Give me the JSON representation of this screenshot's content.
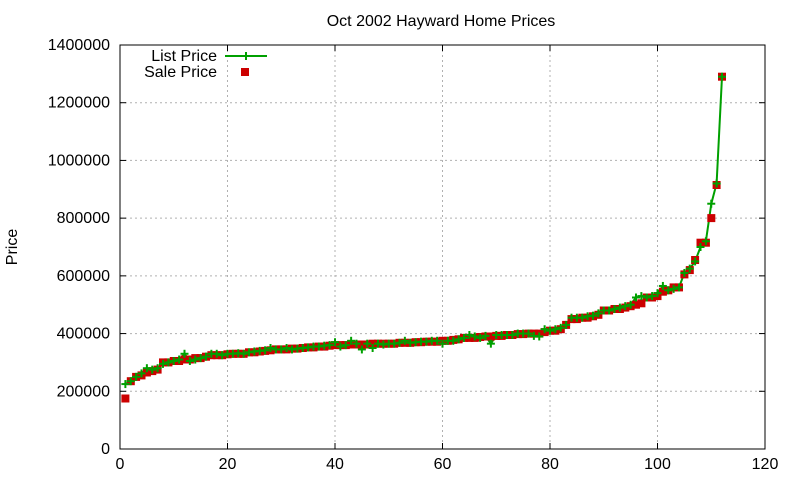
{
  "chart_data": {
    "type": "line",
    "title": "Oct 2002 Hayward Home Prices",
    "xlabel": "",
    "ylabel": "Price",
    "xlim": [
      0,
      120
    ],
    "ylim": [
      0,
      1400000
    ],
    "xticks": [
      0,
      20,
      40,
      60,
      80,
      100,
      120
    ],
    "yticks": [
      0,
      200000,
      400000,
      600000,
      800000,
      1000000,
      1200000,
      1400000
    ],
    "grid": true,
    "legend": "top-left",
    "series": [
      {
        "name": "List Price",
        "style": "linespoints",
        "marker": "plus",
        "color": "#00a000",
        "x": [
          1,
          2,
          3,
          4,
          5,
          6,
          7,
          8,
          9,
          10,
          11,
          12,
          13,
          14,
          15,
          16,
          17,
          18,
          19,
          20,
          21,
          22,
          23,
          24,
          25,
          26,
          27,
          28,
          29,
          30,
          31,
          32,
          33,
          34,
          35,
          36,
          37,
          38,
          39,
          40,
          41,
          42,
          43,
          44,
          45,
          46,
          47,
          48,
          49,
          50,
          51,
          52,
          53,
          54,
          55,
          56,
          57,
          58,
          59,
          60,
          61,
          62,
          63,
          64,
          65,
          66,
          67,
          68,
          69,
          70,
          71,
          72,
          73,
          74,
          75,
          76,
          77,
          78,
          79,
          80,
          81,
          82,
          83,
          84,
          85,
          86,
          87,
          88,
          89,
          90,
          91,
          92,
          93,
          94,
          95,
          96,
          97,
          98,
          99,
          100,
          101,
          102,
          103,
          104,
          105,
          106,
          107,
          108,
          109,
          110,
          111,
          112
        ],
        "y": [
          225000,
          235000,
          250000,
          262000,
          280000,
          275000,
          280000,
          295000,
          300000,
          305000,
          310000,
          330000,
          305000,
          310000,
          315000,
          320000,
          330000,
          330000,
          325000,
          330000,
          330000,
          332000,
          330000,
          335000,
          338000,
          340000,
          342000,
          350000,
          345000,
          345000,
          350000,
          345000,
          348000,
          350000,
          352000,
          355000,
          355000,
          358000,
          360000,
          370000,
          355000,
          360000,
          375000,
          365000,
          345000,
          365000,
          350000,
          365000,
          362000,
          365000,
          365000,
          368000,
          375000,
          368000,
          370000,
          372000,
          372000,
          375000,
          375000,
          365000,
          375000,
          375000,
          380000,
          385000,
          395000,
          390000,
          385000,
          392000,
          365000,
          395000,
          395000,
          395000,
          395000,
          400000,
          400000,
          400000,
          392000,
          390000,
          415000,
          410000,
          415000,
          420000,
          430000,
          455000,
          455000,
          455000,
          460000,
          462000,
          470000,
          480000,
          480000,
          485000,
          490000,
          495000,
          500000,
          525000,
          530000,
          525000,
          530000,
          540000,
          565000,
          550000,
          555000,
          560000,
          610000,
          625000,
          650000,
          700000,
          720000,
          850000,
          920000,
          1290000
        ]
      },
      {
        "name": "Sale Price",
        "style": "points",
        "marker": "square",
        "color": "#cc0000",
        "x": [
          1,
          2,
          3,
          4,
          5,
          6,
          7,
          8,
          9,
          10,
          11,
          12,
          13,
          14,
          15,
          16,
          17,
          18,
          19,
          20,
          21,
          22,
          23,
          24,
          25,
          26,
          27,
          28,
          29,
          30,
          31,
          32,
          33,
          34,
          35,
          36,
          37,
          38,
          39,
          40,
          41,
          42,
          43,
          44,
          45,
          46,
          47,
          48,
          49,
          50,
          51,
          52,
          53,
          54,
          55,
          56,
          57,
          58,
          59,
          60,
          61,
          62,
          63,
          64,
          65,
          66,
          67,
          68,
          69,
          70,
          71,
          72,
          73,
          74,
          75,
          76,
          77,
          78,
          79,
          80,
          81,
          82,
          83,
          84,
          85,
          86,
          87,
          88,
          89,
          90,
          91,
          92,
          93,
          94,
          95,
          96,
          97,
          98,
          99,
          100,
          101,
          102,
          103,
          104,
          105,
          106,
          107,
          108,
          109,
          110,
          111,
          112
        ],
        "y": [
          175000,
          235000,
          250000,
          255000,
          265000,
          270000,
          275000,
          300000,
          300000,
          305000,
          305000,
          310000,
          310000,
          315000,
          315000,
          320000,
          325000,
          325000,
          325000,
          328000,
          330000,
          330000,
          330000,
          335000,
          335000,
          338000,
          340000,
          342000,
          345000,
          345000,
          345000,
          348000,
          348000,
          350000,
          352000,
          352000,
          355000,
          355000,
          358000,
          360000,
          360000,
          360000,
          362000,
          362000,
          362000,
          362000,
          365000,
          365000,
          365000,
          365000,
          365000,
          368000,
          368000,
          368000,
          370000,
          370000,
          372000,
          372000,
          372000,
          375000,
          375000,
          378000,
          380000,
          385000,
          385000,
          385000,
          388000,
          390000,
          390000,
          392000,
          392000,
          395000,
          395000,
          398000,
          398000,
          400000,
          400000,
          400000,
          405000,
          410000,
          410000,
          415000,
          430000,
          450000,
          450000,
          455000,
          455000,
          460000,
          465000,
          480000,
          480000,
          485000,
          485000,
          490000,
          495000,
          500000,
          505000,
          525000,
          525000,
          530000,
          545000,
          550000,
          560000,
          560000,
          605000,
          620000,
          655000,
          715000,
          715000,
          800000,
          915000,
          1290000
        ]
      }
    ]
  }
}
